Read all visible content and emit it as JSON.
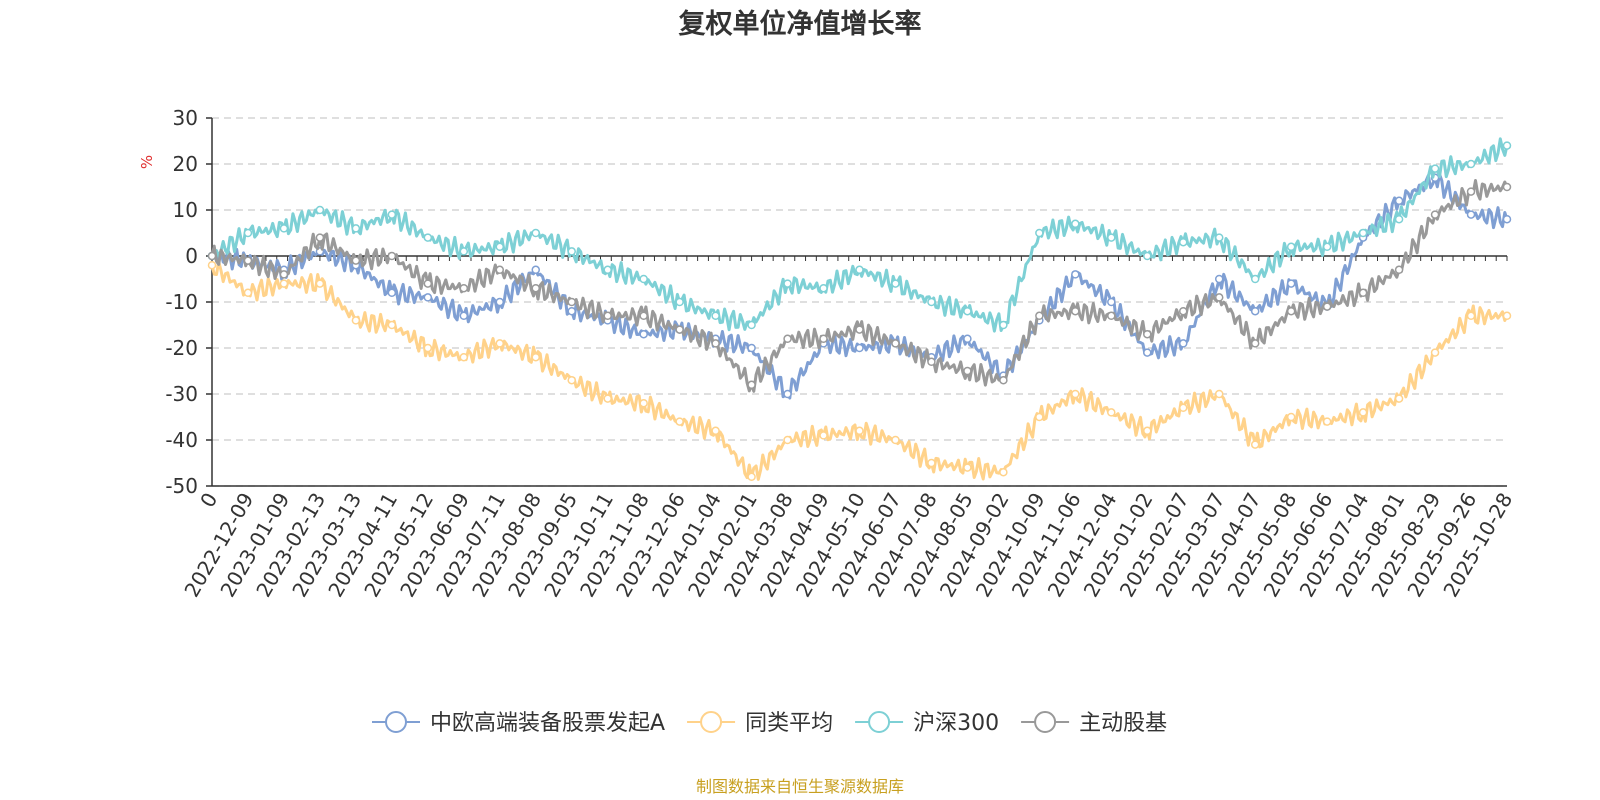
{
  "chart_data": {
    "type": "line",
    "title": "复权单位净值增长率",
    "ylabel": "%",
    "ylim": [
      -50,
      30
    ],
    "yticks": [
      30,
      20,
      10,
      0,
      -10,
      -20,
      -30,
      -40,
      -50
    ],
    "grid": true,
    "legend_position": "bottom",
    "categories": [
      "0",
      "2022-12-09",
      "2023-01-09",
      "2023-02-13",
      "2023-03-13",
      "2023-04-11",
      "2023-05-12",
      "2023-06-09",
      "2023-07-11",
      "2023-08-08",
      "2023-09-05",
      "2023-10-11",
      "2023-11-08",
      "2023-12-06",
      "2024-01-04",
      "2024-02-01",
      "2024-03-08",
      "2024-04-09",
      "2024-05-10",
      "2024-06-07",
      "2024-07-08",
      "2024-08-05",
      "2024-09-02",
      "2024-10-09",
      "2024-11-06",
      "2024-12-04",
      "2025-01-02",
      "2025-02-07",
      "2025-03-07",
      "2025-04-07",
      "2025-05-08",
      "2025-06-06",
      "2025-07-04",
      "2025-08-01",
      "2025-08-29",
      "2025-09-26",
      "2025-10-28"
    ],
    "series": [
      {
        "name": "中欧高端装备股票发起A",
        "color": "#7f9fd3",
        "values": [
          0,
          -1,
          -3,
          1,
          -2,
          -8,
          -9,
          -13,
          -10,
          -3,
          -12,
          -14,
          -17,
          -16,
          -18,
          -20,
          -30,
          -19,
          -20,
          -19,
          -22,
          -18,
          -26,
          -14,
          -4,
          -10,
          -21,
          -19,
          -5,
          -12,
          -6,
          -11,
          4,
          12,
          17,
          9,
          8
        ]
      },
      {
        "name": "同类平均",
        "color": "#ffd28a",
        "values": [
          -2,
          -8,
          -6,
          -6,
          -14,
          -15,
          -20,
          -22,
          -19,
          -22,
          -27,
          -31,
          -32,
          -36,
          -38,
          -48,
          -40,
          -39,
          -38,
          -40,
          -45,
          -46,
          -47,
          -35,
          -30,
          -34,
          -38,
          -33,
          -30,
          -41,
          -35,
          -36,
          -34,
          -31,
          -21,
          -13,
          -13
        ]
      },
      {
        "name": "沪深300",
        "color": "#7dd0d5",
        "values": [
          0,
          5,
          6,
          10,
          6,
          9,
          4,
          1,
          2,
          5,
          1,
          -3,
          -5,
          -10,
          -13,
          -15,
          -6,
          -7,
          -3,
          -6,
          -10,
          -12,
          -15,
          5,
          7,
          4,
          0,
          3,
          4,
          -5,
          2,
          2,
          5,
          8,
          19,
          20,
          24
        ]
      },
      {
        "name": "主动股基",
        "color": "#999999",
        "values": [
          0,
          -1,
          -4,
          4,
          -1,
          0,
          -6,
          -7,
          -3,
          -7,
          -10,
          -13,
          -13,
          -16,
          -19,
          -28,
          -18,
          -18,
          -16,
          -19,
          -23,
          -25,
          -27,
          -13,
          -12,
          -13,
          -17,
          -12,
          -9,
          -19,
          -12,
          -11,
          -8,
          -3,
          9,
          14,
          15
        ]
      }
    ]
  },
  "source_text": "制图数据来自恒生聚源数据库",
  "colors": {
    "axis": "#333333",
    "grid": "#cccccc",
    "ylabel": "#e03030",
    "source": "#c8a020",
    "background": "#ffffff"
  }
}
